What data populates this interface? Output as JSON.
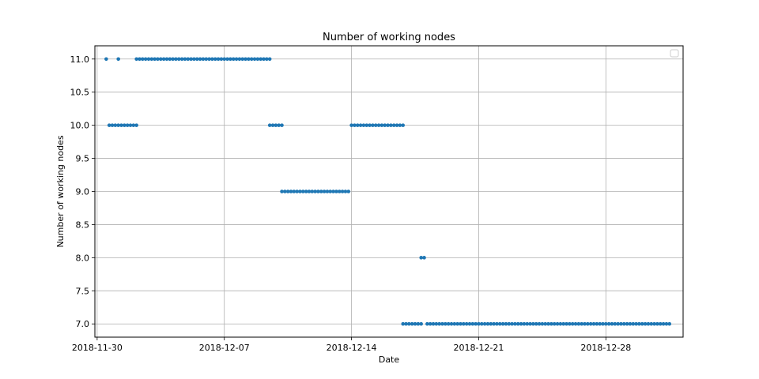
{
  "chart_data": {
    "type": "scatter",
    "title": "Number of working nodes",
    "xlabel": "Date",
    "ylabel": "Number of working nodes",
    "x_type": "date",
    "xlim": [
      "2018-11-29T21:00",
      "2019-01-01T06:00"
    ],
    "ylim": [
      6.8,
      11.2
    ],
    "x_ticks": [
      "2018-11-30",
      "2018-12-07",
      "2018-12-14",
      "2018-12-21",
      "2018-12-28"
    ],
    "y_ticks": [
      "7.0",
      "7.5",
      "8.0",
      "8.5",
      "9.0",
      "9.5",
      "10.0",
      "10.5",
      "11.0"
    ],
    "grid": true,
    "legend": {
      "placement": "upper right",
      "entries": []
    },
    "marker_color": "#1f77b4",
    "series": [
      {
        "runs": [
          {
            "value": 11,
            "start": "2018-11-30T12:00",
            "end": "2018-11-30T12:00",
            "step_hours": 4
          },
          {
            "value": 10,
            "start": "2018-11-30T16:00",
            "end": "2018-12-01T04:00",
            "step_hours": 4
          },
          {
            "value": 11,
            "start": "2018-12-01T04:00",
            "end": "2018-12-01T04:00",
            "step_hours": 4
          },
          {
            "value": 10,
            "start": "2018-12-01T08:00",
            "end": "2018-12-02T04:00",
            "step_hours": 4
          },
          {
            "value": 11,
            "start": "2018-12-02T04:00",
            "end": "2018-12-09T12:00",
            "step_hours": 4
          },
          {
            "value": 10,
            "start": "2018-12-09T12:00",
            "end": "2018-12-10T04:00",
            "step_hours": 4
          },
          {
            "value": 9,
            "start": "2018-12-10T04:00",
            "end": "2018-12-13T20:00",
            "step_hours": 4
          },
          {
            "value": 10,
            "start": "2018-12-14T00:00",
            "end": "2018-12-16T20:00",
            "step_hours": 4
          },
          {
            "value": 7,
            "start": "2018-12-16T20:00",
            "end": "2018-12-17T20:00",
            "step_hours": 4
          },
          {
            "value": 8,
            "start": "2018-12-17T20:00",
            "end": "2018-12-18T00:00",
            "step_hours": 4
          },
          {
            "value": 7,
            "start": "2018-12-18T04:00",
            "end": "2018-12-31T12:00",
            "step_hours": 4
          }
        ]
      }
    ]
  }
}
